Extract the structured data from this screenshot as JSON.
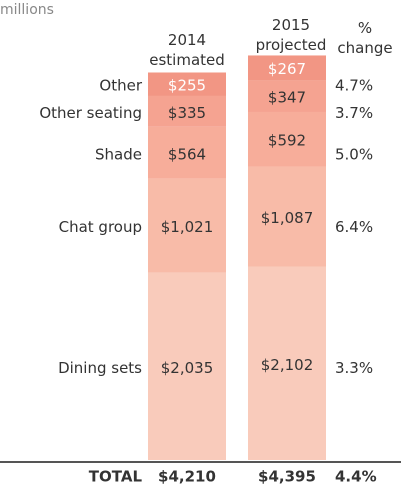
{
  "chart_data": {
    "type": "stacked_bar",
    "subtitle": "millions",
    "categories": [
      "Dining sets",
      "Chat group",
      "Shade",
      "Other seating",
      "Other"
    ],
    "colors": [
      "#f9cbbb",
      "#f8bba8",
      "#f7ad9a",
      "#f5a391",
      "#f29684"
    ],
    "series": [
      {
        "name": "2014 estimated",
        "values": [
          2035,
          1021,
          564,
          335,
          255
        ],
        "value_labels": [
          "$2,035",
          "$1,021",
          "$564",
          "$335",
          "$255"
        ]
      },
      {
        "name": "2015 projected",
        "values": [
          2102,
          1087,
          592,
          347,
          267
        ],
        "value_labels": [
          "$2,102",
          "$1,087",
          "$592",
          "$347",
          "$267"
        ]
      }
    ],
    "change": {
      "name": "% change",
      "values": [
        3.3,
        6.4,
        5.0,
        3.7,
        4.7
      ],
      "value_labels": [
        "3.3%",
        "6.4%",
        "5.0%",
        "3.7%",
        "4.7%"
      ]
    },
    "totals": {
      "label": "TOTAL",
      "values": [
        4210,
        4395
      ],
      "value_labels": [
        "$4,210",
        "$4,395"
      ],
      "change": 4.4,
      "change_label": "4.4%"
    },
    "ylim": [
      0,
      4400
    ]
  }
}
